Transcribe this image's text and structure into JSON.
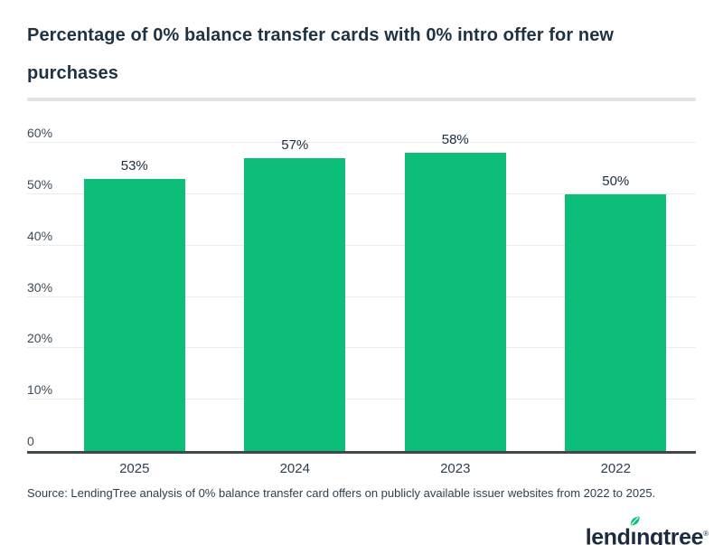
{
  "header": {
    "title": "Percentage of 0% balance transfer cards with 0% intro offer for new purchases"
  },
  "chart_data": {
    "type": "bar",
    "title": "Percentage of 0% balance transfer cards with 0% intro offer for new purchases",
    "categories": [
      "2025",
      "2024",
      "2023",
      "2022"
    ],
    "values": [
      53,
      57,
      58,
      50
    ],
    "data_labels": [
      "53%",
      "57%",
      "58%",
      "50%"
    ],
    "xlabel": "",
    "ylabel": "",
    "ylim": [
      0,
      60
    ],
    "y_ticks": [
      {
        "value": 60,
        "label": "60%"
      },
      {
        "value": 50,
        "label": "50%"
      },
      {
        "value": 40,
        "label": "40%"
      },
      {
        "value": 30,
        "label": "30%"
      },
      {
        "value": 20,
        "label": "20%"
      },
      {
        "value": 10,
        "label": "10%"
      },
      {
        "value": 0,
        "label": "0"
      }
    ],
    "grid": true,
    "legend": false,
    "bar_color": "#0dbe78"
  },
  "footer": {
    "source": "Source: LendingTree analysis of 0% balance transfer card offers on publicly available issuer websites from 2022 to 2025.",
    "logo_text": "lendingtree",
    "logo": {
      "pre": "lend",
      "dotless_i": "ı",
      "post": "ngtree",
      "reg": "®"
    }
  },
  "colors": {
    "bar_green": "#0dbe78",
    "title_navy": "#1d3344",
    "axis_line": "#40474d",
    "gridline": "#ececec",
    "tick_text": "#3f4b57",
    "divider": "#e3e3e3",
    "logo_navy": "#1c2b3e"
  }
}
